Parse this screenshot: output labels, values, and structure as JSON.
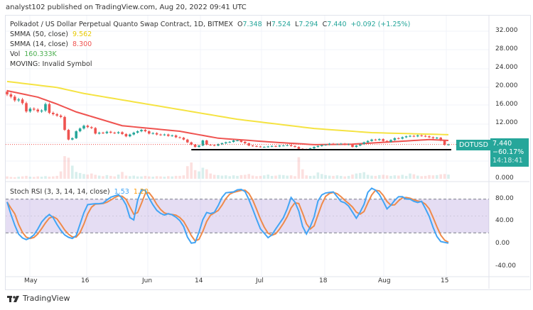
{
  "header": {
    "published": "analyst102 published on TradingView.com, Aug 20, 2022 09:41 UTC"
  },
  "legend": {
    "symbol": "Polkadot / US Dollar Perpetual Quanto Swap Contract, 1D, BITMEX",
    "o_label": "O",
    "o": "7.348",
    "h_label": "H",
    "h": "7.524",
    "l_label": "L",
    "l": "7.294",
    "c_label": "C",
    "c": "7.440",
    "change": "+0.092 (+1.25%)",
    "smma50_label": "SMMA (50, close)",
    "smma50": "9.562",
    "smma14_label": "SMMA (14, close)",
    "smma14": "8.300",
    "vol_label": "Vol",
    "vol": "160.333K",
    "moving": "MOVING: Invalid Symbol",
    "stoch_label": "Stoch RSI (3, 3, 14, 14, close)",
    "stoch_k": "1.53",
    "stoch_d": "1.20"
  },
  "price_axis": [
    "32.000",
    "28.000",
    "24.000",
    "20.000",
    "16.000",
    "12.000",
    "0.000"
  ],
  "price_axis_values": [
    32,
    28,
    24,
    20,
    16,
    12,
    0
  ],
  "stoch_axis": [
    "80.00",
    "40.00",
    "0.00",
    "-40.00"
  ],
  "stoch_axis_values": [
    80,
    40,
    0,
    -40
  ],
  "x_ticks": [
    "May",
    "16",
    "Jun",
    "14",
    "Jul",
    "18",
    "Aug",
    "15"
  ],
  "tags": {
    "symbol": "DOTUSD",
    "price": "7.440",
    "change": "−60.17%",
    "countdown": "14:18:41"
  },
  "footer": {
    "brand": "TradingView"
  },
  "colors": {
    "up": "#26a69a",
    "down": "#ef5350",
    "smma50": "#f5e342",
    "smma14": "#ef5350",
    "stoch_k": "#42a5f5",
    "stoch_d": "#ef8a4a",
    "band": "#7e57c2"
  },
  "chart_data": {
    "type": "candlestick",
    "closes": [
      18.3,
      17.8,
      17.0,
      17.2,
      16.4,
      14.6,
      15.2,
      15.0,
      14.6,
      14.8,
      16.2,
      14.3,
      14.0,
      13.7,
      13.4,
      10.6,
      8.5,
      8.8,
      10.3,
      10.9,
      11.5,
      11.2,
      11.0,
      9.8,
      10.0,
      9.9,
      10.2,
      10.0,
      9.9,
      10.1,
      9.7,
      9.2,
      9.6,
      10.0,
      10.3,
      10.6,
      10.3,
      9.8,
      9.9,
      9.6,
      9.5,
      9.6,
      9.3,
      9.4,
      9.0,
      8.9,
      8.5,
      7.9,
      7.4,
      6.9,
      7.2,
      8.3,
      7.4,
      7.3,
      7.2,
      7.5,
      7.7,
      7.9,
      8.0,
      8.3,
      8.3,
      8.0,
      7.7,
      7.2,
      7.1,
      7.0,
      6.9,
      6.9,
      7.0,
      7.1,
      7.0,
      7.2,
      7.2,
      7.3,
      7.1,
      6.9,
      6.5,
      6.4,
      6.3,
      6.6,
      6.9,
      7.1,
      7.3,
      7.4,
      7.6,
      7.5,
      7.5,
      7.6,
      7.4,
      7.5,
      6.9,
      7.2,
      7.5,
      7.9,
      8.2,
      8.5,
      8.4,
      8.6,
      8.2,
      8.0,
      8.4,
      8.8,
      8.7,
      9.0,
      9.2,
      9.3,
      9.2,
      9.4,
      9.3,
      9.2,
      9.0,
      8.8,
      8.9,
      8.3,
      7.35,
      7.44
    ],
    "first_open": 18.9,
    "volume_k": [
      90,
      70,
      60,
      80,
      90,
      110,
      80,
      70,
      90,
      80,
      100,
      80,
      90,
      110,
      280,
      860,
      800,
      500,
      260,
      220,
      180,
      160,
      200,
      150,
      120,
      100,
      140,
      110,
      90,
      160,
      260,
      120,
      100,
      120,
      90,
      90,
      110,
      90,
      80,
      100,
      90,
      80,
      100,
      90,
      110,
      110,
      130,
      480,
      620,
      330,
      280,
      420,
      360,
      200,
      150,
      140,
      120,
      130,
      100,
      130,
      110,
      140,
      150,
      180,
      120,
      100,
      110,
      130,
      160,
      110,
      120,
      150,
      140,
      120,
      130,
      100,
      820,
      360,
      130,
      110,
      120,
      240,
      180,
      140,
      120,
      110,
      130,
      110,
      90,
      110,
      160,
      200,
      220,
      250,
      150,
      120,
      110,
      140,
      150,
      130,
      110,
      130,
      120,
      150,
      110,
      200,
      170,
      120,
      100,
      110,
      140,
      130,
      140,
      170,
      180,
      160
    ],
    "smma50_points": [
      [
        0,
        21.1
      ],
      [
        13,
        19.8
      ],
      [
        20,
        18.5
      ],
      [
        40,
        15.7
      ],
      [
        60,
        12.9
      ],
      [
        80,
        10.9
      ],
      [
        95,
        10.0
      ],
      [
        115,
        9.562
      ]
    ],
    "smma14_points": [
      [
        0,
        19.1
      ],
      [
        8,
        17.7
      ],
      [
        13,
        16.2
      ],
      [
        18,
        14.5
      ],
      [
        30,
        11.5
      ],
      [
        45,
        10.3
      ],
      [
        55,
        8.8
      ],
      [
        70,
        7.9
      ],
      [
        80,
        7.4
      ],
      [
        90,
        7.5
      ],
      [
        100,
        8.0
      ],
      [
        110,
        8.5
      ],
      [
        115,
        8.3
      ]
    ],
    "support_level": 6.3,
    "support_from_index": 48,
    "stoch_k_points": [
      [
        0,
        75
      ],
      [
        1.6,
        40
      ],
      [
        3.3,
        13
      ],
      [
        5.3,
        7
      ],
      [
        7.3,
        18
      ],
      [
        9.3,
        43
      ],
      [
        11.4,
        55
      ],
      [
        12.6,
        39
      ],
      [
        14.6,
        18
      ],
      [
        16.7,
        9
      ],
      [
        17.9,
        13
      ],
      [
        20.7,
        70
      ],
      [
        22.8,
        72
      ],
      [
        24.8,
        72
      ],
      [
        26.8,
        83
      ],
      [
        29.3,
        89
      ],
      [
        30.9,
        72
      ],
      [
        32.1,
        45
      ],
      [
        33,
        43
      ],
      [
        34.5,
        95
      ],
      [
        35.8,
        99
      ],
      [
        37.4,
        76
      ],
      [
        39,
        60
      ],
      [
        40.7,
        51
      ],
      [
        42.3,
        55
      ],
      [
        44.7,
        45
      ],
      [
        46.3,
        28
      ],
      [
        47.5,
        1
      ],
      [
        49.2,
        3
      ],
      [
        51.6,
        57
      ],
      [
        53.7,
        53
      ],
      [
        55.3,
        72
      ],
      [
        56.5,
        91
      ],
      [
        59,
        93
      ],
      [
        60.6,
        99
      ],
      [
        62.2,
        93
      ],
      [
        63.8,
        66
      ],
      [
        65.9,
        28
      ],
      [
        68.3,
        9
      ],
      [
        69.9,
        26
      ],
      [
        72.4,
        51
      ],
      [
        74,
        83
      ],
      [
        75.6,
        70
      ],
      [
        77.2,
        26
      ],
      [
        78,
        18
      ],
      [
        79.7,
        40
      ],
      [
        81.3,
        85
      ],
      [
        82.9,
        91
      ],
      [
        85,
        93
      ],
      [
        87,
        76
      ],
      [
        88.6,
        72
      ],
      [
        91.1,
        45
      ],
      [
        93.1,
        72
      ],
      [
        94.3,
        99
      ],
      [
        95.5,
        100
      ],
      [
        97.2,
        87
      ],
      [
        99.2,
        60
      ],
      [
        100.4,
        74
      ],
      [
        102.4,
        87
      ],
      [
        104.1,
        80
      ],
      [
        105.7,
        80
      ],
      [
        106.5,
        70
      ],
      [
        107.7,
        80
      ],
      [
        109.8,
        53
      ],
      [
        111.4,
        22
      ],
      [
        112.6,
        5
      ],
      [
        115,
        1.53
      ]
    ],
    "stoch_bands": [
      80,
      20
    ]
  }
}
